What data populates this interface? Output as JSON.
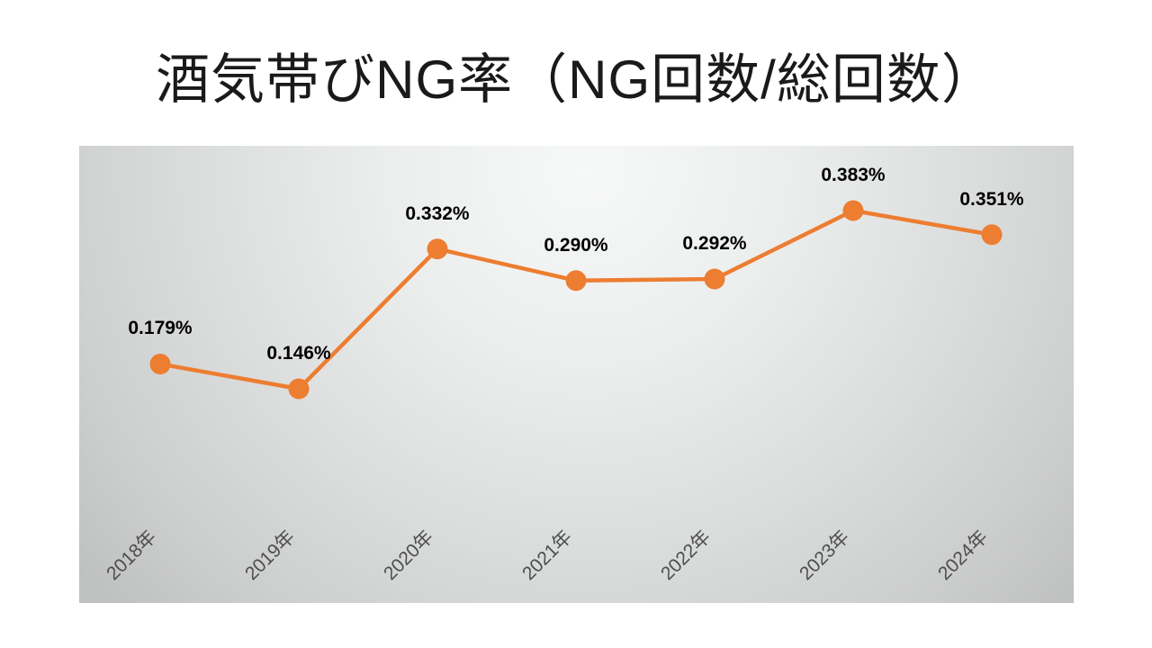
{
  "page": {
    "background_color": "#ffffff"
  },
  "chart_data": {
    "type": "line",
    "title": "酒気帯びNG率（NG回数/総回数）",
    "categories": [
      "2018年",
      "2019年",
      "2020年",
      "2021年",
      "2022年",
      "2023年",
      "2024年"
    ],
    "values": [
      0.179,
      0.146,
      0.332,
      0.29,
      0.292,
      0.383,
      0.351
    ],
    "data_labels": [
      "0.179%",
      "0.146%",
      "0.332%",
      "0.290%",
      "0.292%",
      "0.383%",
      "0.351%"
    ],
    "unit": "%",
    "xlabel": "",
    "ylabel": "",
    "ylim": [
      0,
      0.45
    ],
    "grid": false,
    "legend": false,
    "axis_lines_visible": false,
    "marker": "circle",
    "colors": {
      "series": "#ED7D31",
      "data_label": "#000000",
      "axis_label": "#4d4d4d",
      "title": "#1a1a1a"
    }
  }
}
